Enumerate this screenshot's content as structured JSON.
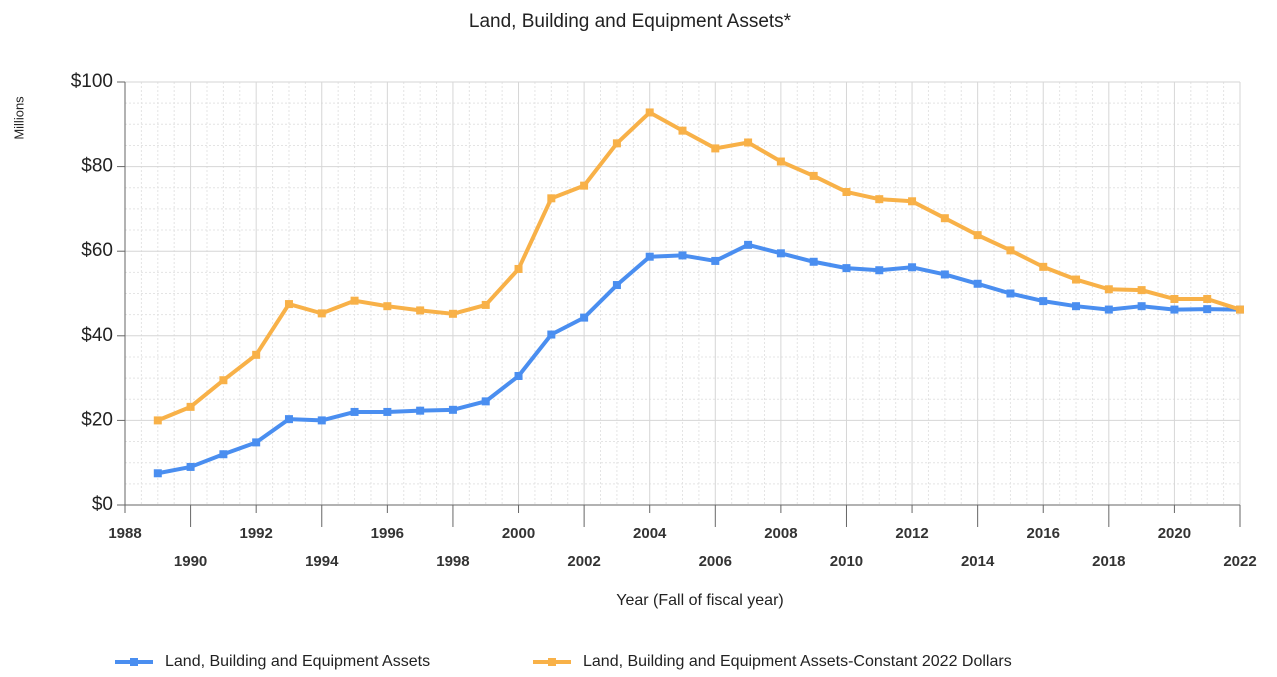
{
  "chart_data": {
    "type": "line",
    "title": "Land, Building and Equipment Assets*",
    "y_label": "Millions",
    "x_label": "Year (Fall of fiscal year)",
    "x": [
      1989,
      1990,
      1991,
      1992,
      1993,
      1994,
      1995,
      1996,
      1997,
      1998,
      1999,
      2000,
      2001,
      2002,
      2003,
      2004,
      2005,
      2006,
      2007,
      2008,
      2009,
      2010,
      2011,
      2012,
      2013,
      2014,
      2015,
      2016,
      2017,
      2018,
      2019,
      2020,
      2021,
      2022
    ],
    "series": [
      {
        "name": "Land, Building and Equipment Assets",
        "color": "#4a8ef0",
        "values": [
          7.5,
          9,
          12,
          14.8,
          20.3,
          20,
          22,
          22,
          22.3,
          22.5,
          24.5,
          30.5,
          40.3,
          44.3,
          52,
          58.7,
          59,
          57.7,
          61.5,
          59.5,
          57.5,
          56,
          55.5,
          56.2,
          54.5,
          52.3,
          50,
          48.2,
          47,
          46.2,
          47,
          46.2,
          46.3,
          46.2
        ]
      },
      {
        "name": "Land, Building and Equipment Assets-Constant 2022 Dollars",
        "color": "#f8b148",
        "values": [
          20,
          23.2,
          29.5,
          35.5,
          47.5,
          45.3,
          48.3,
          47,
          46,
          45.2,
          47.3,
          55.8,
          72.5,
          75.5,
          85.5,
          92.8,
          88.5,
          84.3,
          85.7,
          81.2,
          77.8,
          74,
          72.3,
          71.8,
          67.8,
          63.8,
          60.2,
          56.3,
          53.3,
          51,
          50.8,
          48.7,
          48.7,
          46.2
        ]
      }
    ],
    "xlim": [
      1988,
      2022
    ],
    "xticks": [
      1988,
      1990,
      1992,
      1994,
      1996,
      1998,
      2000,
      2002,
      2004,
      2006,
      2008,
      2010,
      2012,
      2014,
      2016,
      2018,
      2020,
      2022
    ],
    "ylim": [
      0,
      100
    ],
    "yticks": [
      {
        "value": 0,
        "label": "$0"
      },
      {
        "value": 20,
        "label": "$20"
      },
      {
        "value": 40,
        "label": "$40"
      },
      {
        "value": 60,
        "label": "$60"
      },
      {
        "value": 80,
        "label": "$80"
      },
      {
        "value": 100,
        "label": "$100"
      }
    ],
    "grid": true,
    "legend": "bottom"
  }
}
